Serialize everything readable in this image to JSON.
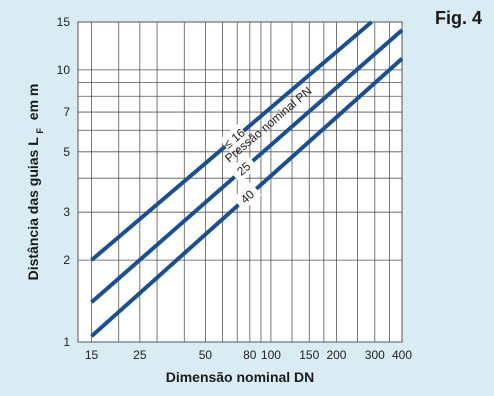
{
  "figure_label": "Fig. 4",
  "colors": {
    "background": "#d9ecf3",
    "plot_background": "#ffffff",
    "grid": "#555555",
    "series": "#1a4f91"
  },
  "chart_data": {
    "type": "line",
    "title": "",
    "xlabel": "Dimensão nominal DN",
    "ylabel_main": "Distância das guias L",
    "ylabel_sub": "F",
    "ylabel_unit": "em m",
    "x_scale": "log",
    "y_scale": "log",
    "xlim": [
      13,
      400
    ],
    "ylim": [
      1,
      15
    ],
    "x_ticks": [
      15,
      25,
      50,
      80,
      100,
      150,
      200,
      300,
      400
    ],
    "x_tick_labels": [
      "15",
      "25",
      "50",
      "80",
      "100",
      "150",
      "200",
      "300",
      "400"
    ],
    "x_minor_grid": [
      20,
      30,
      40,
      60,
      70,
      90,
      125,
      175,
      250,
      350
    ],
    "y_ticks": [
      1,
      2,
      3,
      5,
      7,
      10,
      15
    ],
    "y_tick_labels": [
      "1",
      "2",
      "3",
      "5",
      "7",
      "10",
      "15"
    ],
    "y_minor_grid": [
      4,
      6,
      8,
      9
    ],
    "grid": true,
    "legend": "none",
    "annotation": "Pressão nominal PN",
    "series": [
      {
        "name": "≤ 16",
        "x": [
          15,
          290
        ],
        "y": [
          2.0,
          15.0
        ]
      },
      {
        "name": "25",
        "x": [
          15,
          400
        ],
        "y": [
          1.4,
          14.0
        ]
      },
      {
        "name": "40",
        "x": [
          15,
          400
        ],
        "y": [
          1.05,
          11.0
        ]
      }
    ]
  }
}
